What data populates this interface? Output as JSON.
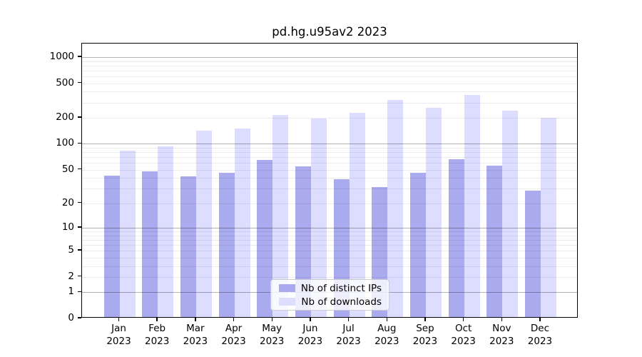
{
  "title": "pd.hg.u95av2 2023",
  "chart_data": {
    "type": "bar",
    "title": "pd.hg.u95av2 2023",
    "categories": [
      "Jan 2023",
      "Feb 2023",
      "Mar 2023",
      "Apr 2023",
      "May 2023",
      "Jun 2023",
      "Jul 2023",
      "Aug 2023",
      "Sep 2023",
      "Oct 2023",
      "Nov 2023",
      "Dec 2023"
    ],
    "series": [
      {
        "name": "Nb of distinct IPs",
        "color": "#aaaaee",
        "values": [
          41,
          46,
          40,
          44,
          63,
          53,
          37,
          30,
          44,
          64,
          54,
          27
        ]
      },
      {
        "name": "Nb of downloads",
        "color": "#ddddff",
        "values": [
          80,
          90,
          137,
          145,
          206,
          188,
          218,
          308,
          250,
          352,
          233,
          194
        ]
      }
    ],
    "xlabel": "",
    "ylabel": "",
    "y_scale": "log1p",
    "y_ticks": [
      0,
      1,
      2,
      5,
      10,
      20,
      50,
      100,
      200,
      500,
      1000
    ],
    "ylim": [
      0,
      1400
    ],
    "grid": "major-and-minor, drawn over bars",
    "legend_position": "lower-center"
  }
}
